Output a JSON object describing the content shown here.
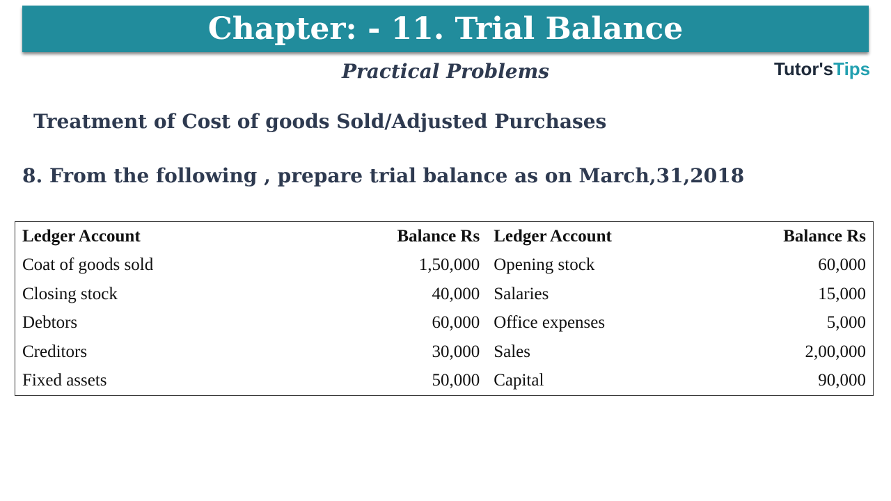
{
  "header": {
    "title": "Chapter: - 11. Trial Balance",
    "subtitle": "Practical Problems",
    "logo": {
      "part1": "T",
      "part2": "utor's",
      "part3": "T",
      "part4": "ips"
    }
  },
  "section_title": "Treatment of Cost of goods Sold/Adjusted Purchases",
  "question": "8. From the following , prepare trial balance as on March,31,2018",
  "table": {
    "header": [
      "Ledger Account",
      "Balance Rs",
      "Ledger Account",
      "Balance Rs"
    ],
    "rows": [
      [
        "Coat of goods sold",
        "1,50,000",
        "Opening stock",
        "60,000"
      ],
      [
        "Closing stock",
        "40,000",
        "Salaries",
        "15,000"
      ],
      [
        "Debtors",
        "60,000",
        "Office expenses",
        "5,000"
      ],
      [
        "Creditors",
        "30,000",
        "Sales",
        "2,00,000"
      ],
      [
        "Fixed assets",
        "50,000",
        "Capital",
        "90,000"
      ]
    ]
  }
}
